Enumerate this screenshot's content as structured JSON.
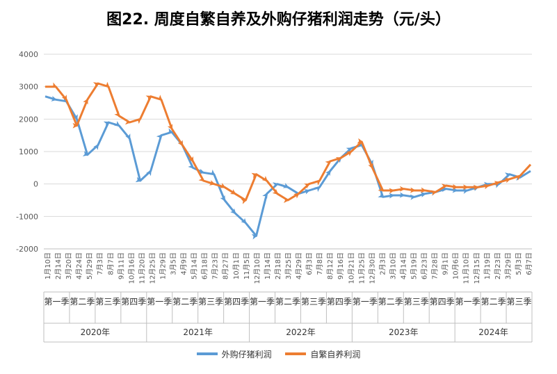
{
  "title": "图22. 周度自繁自养及外购仔猪利润走势（元/头）",
  "colors": {
    "purchased": "#5B9BD5",
    "self": "#ED7D31",
    "grid": "#d9d9d9",
    "axis": "#bfbfbf"
  },
  "chart_data": {
    "type": "line",
    "title": "图22. 周度自繁自养及外购仔猪利润走势（元/头）",
    "ylim": [
      -2000,
      4000
    ],
    "yticks": [
      -2000,
      -1000,
      0,
      1000,
      2000,
      3000,
      4000
    ],
    "grid": true,
    "legend_position": "bottom",
    "x_date_labels": [
      "1月10日",
      "2月14日",
      "3月20日",
      "4月24日",
      "5月29日",
      "7月3日",
      "8月7日",
      "9月11日",
      "10月16日",
      "11月20日",
      "12月25日",
      "1月29日",
      "3月5日",
      "4月9日",
      "5月14日",
      "6月18日",
      "7月23日",
      "8月27日",
      "10月1日",
      "11月5日",
      "12月10日",
      "1月14日",
      "2月18日",
      "3月25日",
      "4月29日",
      "6月3日",
      "7月8日",
      "8月12日",
      "9月16日",
      "10月21日",
      "11月25日",
      "12月30日",
      "2月3日",
      "3月10日",
      "4月14日",
      "5月19日",
      "6月23日",
      "7月28日",
      "9月1日",
      "10月6日",
      "11月10日",
      "12月15日",
      "1月19日",
      "2月23日",
      "3月29日",
      "5月3日",
      "6月7日"
    ],
    "quarters": [
      {
        "label": "第一季",
        "year": "2020年"
      },
      {
        "label": "第二季",
        "year": "2020年"
      },
      {
        "label": "第三季",
        "year": "2020年"
      },
      {
        "label": "第四季",
        "year": "2020年"
      },
      {
        "label": "第一季",
        "year": "2021年"
      },
      {
        "label": "第二季",
        "year": "2021年"
      },
      {
        "label": "第三季",
        "year": "2021年"
      },
      {
        "label": "第四季",
        "year": "2021年"
      },
      {
        "label": "第一季",
        "year": "2022年"
      },
      {
        "label": "第二季",
        "year": "2022年"
      },
      {
        "label": "第三季",
        "year": "2022年"
      },
      {
        "label": "第四季",
        "year": "2022年"
      },
      {
        "label": "第一季",
        "year": "2023年"
      },
      {
        "label": "第二季",
        "year": "2023年"
      },
      {
        "label": "第三季",
        "year": "2023年"
      },
      {
        "label": "第四季",
        "year": "2023年"
      },
      {
        "label": "第一季",
        "year": "2024年"
      },
      {
        "label": "第二季",
        "year": "2024年"
      },
      {
        "label": "第三季",
        "year": "2024年"
      }
    ],
    "years": [
      "2020年",
      "2021年",
      "2022年",
      "2023年",
      "2024年"
    ],
    "series": [
      {
        "name": "外购仔猪利润",
        "color": "#5B9BD5",
        "values": [
          2700,
          2600,
          2550,
          2000,
          900,
          1200,
          1900,
          1800,
          1400,
          100,
          400,
          1500,
          1600,
          1200,
          500,
          350,
          300,
          -500,
          -900,
          -1200,
          -1600,
          -300,
          0,
          -100,
          -300,
          -200,
          -100,
          400,
          800,
          1100,
          1200,
          600,
          -400,
          -350,
          -350,
          -400,
          -300,
          -250,
          -150,
          -200,
          -200,
          -100,
          0,
          0,
          300,
          200,
          400
        ]
      },
      {
        "name": "自繁自养利润",
        "color": "#ED7D31",
        "values": [
          3000,
          3000,
          2600,
          1800,
          2600,
          3100,
          3000,
          2100,
          1900,
          2000,
          2700,
          2600,
          1700,
          1200,
          700,
          100,
          0,
          -100,
          -300,
          -500,
          300,
          100,
          -300,
          -500,
          -300,
          0,
          100,
          700,
          800,
          1000,
          1300,
          500,
          -200,
          -200,
          -150,
          -200,
          -200,
          -250,
          -50,
          -100,
          -100,
          -100,
          -50,
          50,
          150,
          250,
          600
        ]
      }
    ]
  }
}
